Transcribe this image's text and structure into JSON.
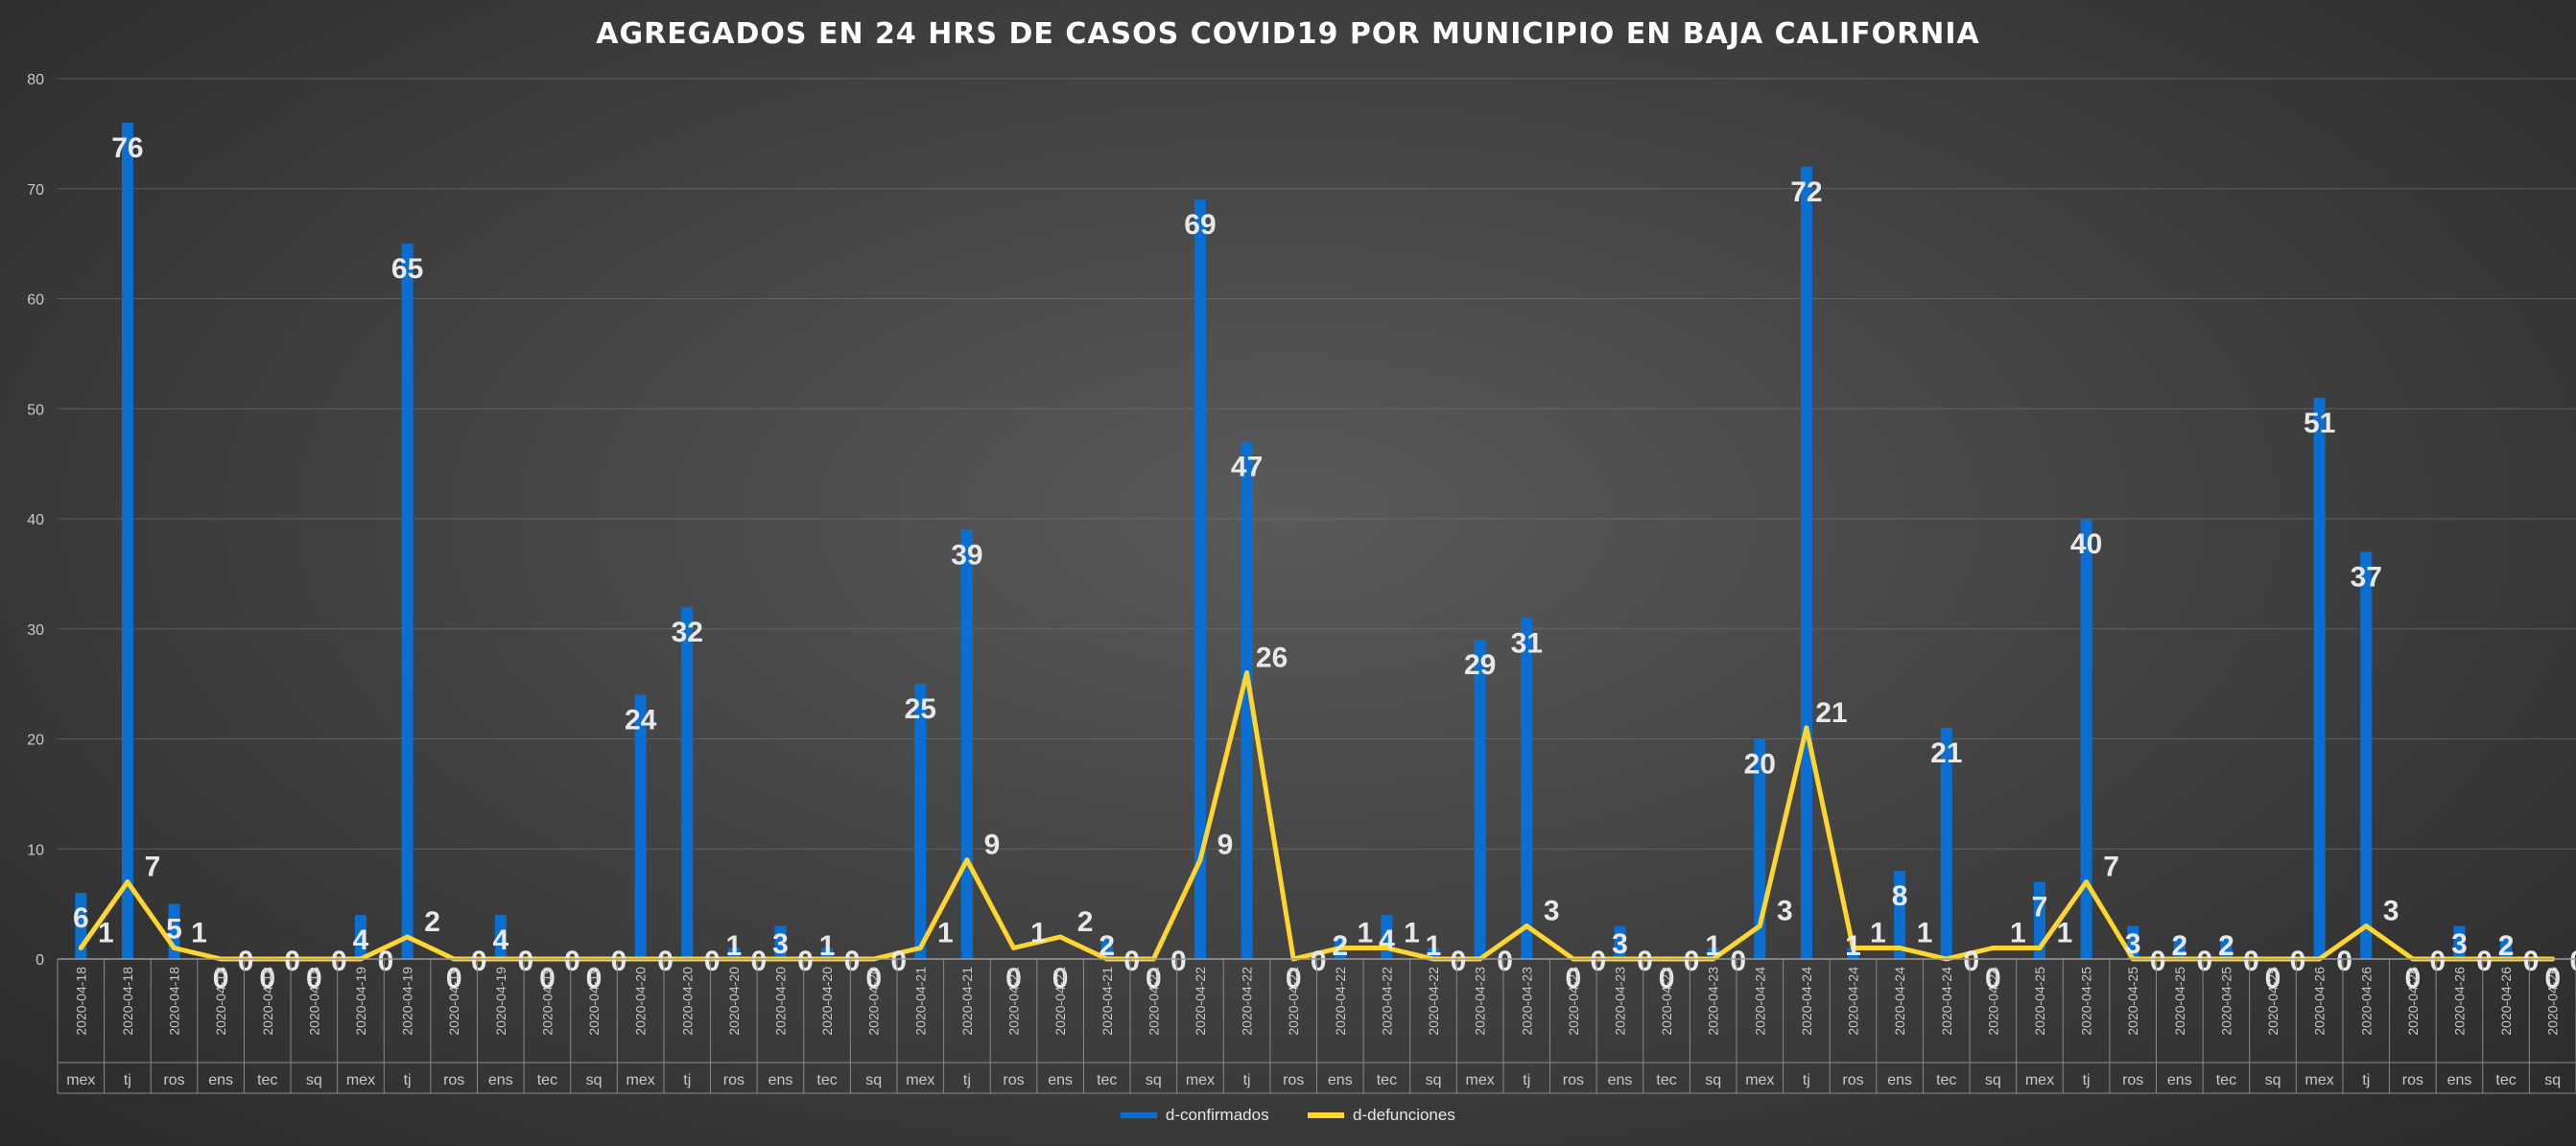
{
  "colors": {
    "confirmados": "#0a6fd1",
    "defunciones": "#ffd630",
    "label": "#e8e8e8",
    "axis": "#c8c8c8"
  },
  "chart_data": {
    "type": "bar",
    "title": "AGREGADOS EN 24 HRS DE CASOS COVID19 POR MUNICIPIO EN BAJA CALIFORNIA",
    "xlabel": "",
    "ylabel": "",
    "ylim": [
      0,
      80
    ],
    "yticks": [
      "0",
      "10",
      "20",
      "30",
      "40",
      "50",
      "60",
      "70",
      "80"
    ],
    "grid": true,
    "legend_position": "bottom",
    "dates": [
      "2020-04-18",
      "2020-04-18",
      "2020-04-18",
      "2020-04-18",
      "2020-04-18",
      "2020-04-18",
      "2020-04-19",
      "2020-04-19",
      "2020-04-19",
      "2020-04-19",
      "2020-04-19",
      "2020-04-19",
      "2020-04-20",
      "2020-04-20",
      "2020-04-20",
      "2020-04-20",
      "2020-04-20",
      "2020-04-20",
      "2020-04-21",
      "2020-04-21",
      "2020-04-21",
      "2020-04-21",
      "2020-04-21",
      "2020-04-21",
      "2020-04-22",
      "2020-04-22",
      "2020-04-22",
      "2020-04-22",
      "2020-04-22",
      "2020-04-22",
      "2020-04-23",
      "2020-04-23",
      "2020-04-23",
      "2020-04-23",
      "2020-04-23",
      "2020-04-23",
      "2020-04-24",
      "2020-04-24",
      "2020-04-24",
      "2020-04-24",
      "2020-04-24",
      "2020-04-24",
      "2020-04-25",
      "2020-04-25",
      "2020-04-25",
      "2020-04-25",
      "2020-04-25",
      "2020-04-25",
      "2020-04-26",
      "2020-04-26",
      "2020-04-26",
      "2020-04-26",
      "2020-04-26",
      "2020-04-26"
    ],
    "municipios": [
      "mex",
      "tj",
      "ros",
      "ens",
      "tec",
      "sq",
      "mex",
      "tj",
      "ros",
      "ens",
      "tec",
      "sq",
      "mex",
      "tj",
      "ros",
      "ens",
      "tec",
      "sq",
      "mex",
      "tj",
      "ros",
      "ens",
      "tec",
      "sq",
      "mex",
      "tj",
      "ros",
      "ens",
      "tec",
      "sq",
      "mex",
      "tj",
      "ros",
      "ens",
      "tec",
      "sq",
      "mex",
      "tj",
      "ros",
      "ens",
      "tec",
      "sq",
      "mex",
      "tj",
      "ros",
      "ens",
      "tec",
      "sq",
      "mex",
      "tj",
      "ros",
      "ens",
      "tec",
      "sq"
    ],
    "series": [
      {
        "name": "d-confirmados",
        "type": "bar",
        "values": [
          6,
          76,
          5,
          0,
          0,
          0,
          4,
          65,
          0,
          4,
          0,
          0,
          24,
          32,
          1,
          3,
          1,
          0,
          25,
          39,
          0,
          0,
          2,
          0,
          69,
          47,
          0,
          2,
          4,
          1,
          29,
          31,
          0,
          3,
          0,
          1,
          20,
          72,
          1,
          8,
          21,
          0,
          7,
          40,
          3,
          2,
          2,
          0,
          51,
          37,
          0,
          3,
          2,
          0
        ]
      },
      {
        "name": "d-defunciones",
        "type": "line",
        "values": [
          1,
          7,
          1,
          0,
          0,
          0,
          0,
          2,
          0,
          0,
          0,
          0,
          0,
          0,
          0,
          0,
          0,
          0,
          1,
          9,
          1,
          2,
          0,
          0,
          9,
          26,
          0,
          1,
          1,
          0,
          0,
          3,
          0,
          0,
          0,
          0,
          3,
          21,
          1,
          1,
          0,
          1,
          1,
          7,
          0,
          0,
          0,
          0,
          0,
          3,
          0,
          0,
          0,
          0
        ]
      }
    ]
  },
  "legend": {
    "confirmados": "d-confirmados",
    "defunciones": "d-defunciones"
  }
}
